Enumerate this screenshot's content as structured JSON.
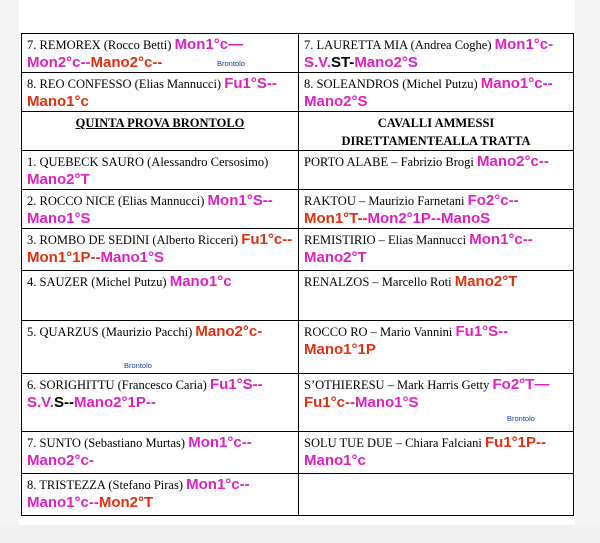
{
  "top_rows": [
    {
      "left": {
        "name": "7. REMOREX (Rocco Betti) ",
        "runs": [
          {
            "t": "Mon1°c—",
            "c": "m"
          },
          {
            "t": "Mon2°c--",
            "c": "m"
          },
          {
            "t": "Mano2°c--",
            "c": "o"
          }
        ]
      },
      "right": {
        "name": "7. LAURETTA MIA (Andrea Coghe) ",
        "runs": [
          {
            "t": "Mon1°c-",
            "c": "m"
          },
          {
            "t": "S.V.",
            "c": "m"
          },
          {
            "t": "ST-",
            "c": "k"
          },
          {
            "t": "Mano2°S",
            "c": "m"
          }
        ]
      }
    },
    {
      "left": {
        "name": "8. REO CONFESSO (Elias Mannucci)  ",
        "runs": [
          {
            "t": "Fu1°S--",
            "c": "m"
          },
          {
            "t": "Mano1°c",
            "c": "o"
          }
        ]
      },
      "right": {
        "name": "8. SOLEANDROS (Michel Putzu) ",
        "runs": [
          {
            "t": "Mano1°c--",
            "c": "m"
          },
          {
            "t": "Mano2°S",
            "c": "m"
          }
        ]
      }
    }
  ],
  "headers": {
    "left": "QUINTA PROVA   BRONTOLO",
    "right_line1": "CAVALLI AMMESSI",
    "right_line2": "DIRETTAMENTEALLA TRATTA"
  },
  "stamp_text": "Brontolo",
  "rows": [
    {
      "left": {
        "name": "1. QUEBECK SAURO (Alessandro Cersosimo) ",
        "runs": [
          {
            "t": "Mano2°T",
            "c": "m"
          }
        ]
      },
      "right": {
        "name": "PORTO ALABE – Fabrizio Brogi ",
        "runs": [
          {
            "t": "Mano2°c--",
            "c": "m"
          }
        ]
      }
    },
    {
      "left": {
        "name": "2. ROCCO NICE (Elias Mannucci) ",
        "runs": [
          {
            "t": "Mon1°S--",
            "c": "m"
          },
          {
            "t": "Mano1°S",
            "c": "m"
          }
        ]
      },
      "right": {
        "name": "RAKTOU – Maurizio Farnetani ",
        "runs": [
          {
            "t": "Fo2°c--",
            "c": "m"
          },
          {
            "t": "Mon1°T--",
            "c": "o"
          },
          {
            "t": "Mon2°1P--",
            "c": "m"
          },
          {
            "t": "ManoS",
            "c": "m"
          }
        ]
      }
    },
    {
      "left": {
        "name": "3. ROMBO DE SEDINI (Alberto Ricceri) ",
        "runs": [
          {
            "t": "Fu1°c--",
            "c": "o"
          },
          {
            "t": "Mon1°1P--",
            "c": "o"
          },
          {
            "t": "Mano1°S",
            "c": "m"
          }
        ]
      },
      "right": {
        "name": "REMISTIRIO – Elias Mannucci ",
        "runs": [
          {
            "t": "Mon1°c--",
            "c": "m"
          },
          {
            "t": "Mano2°T",
            "c": "m"
          }
        ]
      }
    },
    {
      "left": {
        "name": "4. SAUZER (Michel Putzu) ",
        "runs": [
          {
            "t": "Mano1°c",
            "c": "m"
          }
        ]
      },
      "right": {
        "name": "RENALZOS – Marcello Roti ",
        "runs": [
          {
            "t": "Mano2°T",
            "c": "o"
          }
        ]
      }
    },
    {
      "left": {
        "name": "5. QUARZUS (Maurizio Pacchi) ",
        "runs": [
          {
            "t": "Mano2°c-",
            "c": "o"
          }
        ]
      },
      "right": {
        "name": "ROCCO RO – Mario Vannini ",
        "runs": [
          {
            "t": "Fu1°S--",
            "c": "m"
          },
          {
            "t": "Mano1°1P",
            "c": "o"
          }
        ]
      }
    },
    {
      "left": {
        "name": "6. SORIGHITTU (Francesco Caria) ",
        "runs": [
          {
            "t": "Fu1°S--",
            "c": "m"
          },
          {
            "t": "S.V.",
            "c": "m"
          },
          {
            "t": "S--",
            "c": "k"
          },
          {
            "t": "Mano2°1P--",
            "c": "m"
          }
        ]
      },
      "right": {
        "name": "S’OTHIERESU – Mark Harris Getty ",
        "runs": [
          {
            "t": "Fo2°T—",
            "c": "m"
          },
          {
            "t": "Fu1°c--",
            "c": "o"
          },
          {
            "t": "Mano1°S",
            "c": "m"
          }
        ]
      }
    },
    {
      "left": {
        "name": "7. SUNTO (Sebastiano Murtas) ",
        "runs": [
          {
            "t": "Mon1°c--",
            "c": "m"
          },
          {
            "t": "Mano2°c-",
            "c": "m"
          }
        ]
      },
      "right": {
        "name": "SOLU TUE DUE – Chiara Falciani ",
        "runs": [
          {
            "t": "Fu1°1P--",
            "c": "o"
          },
          {
            "t": "Mano1°c",
            "c": "m"
          }
        ]
      }
    },
    {
      "left": {
        "name": "8. TRISTEZZA (Stefano Piras) ",
        "runs": [
          {
            "t": "Mon1°c--",
            "c": "m"
          },
          {
            "t": "Mano1°c--",
            "c": "m"
          },
          {
            "t": "Mon2°T",
            "c": "o"
          }
        ]
      },
      "right": {
        "name": "",
        "runs": []
      }
    }
  ],
  "colors": {
    "magenta": "#e020c0",
    "orange_red": "#e03010",
    "stamp_blue": "#1a3a9a"
  }
}
